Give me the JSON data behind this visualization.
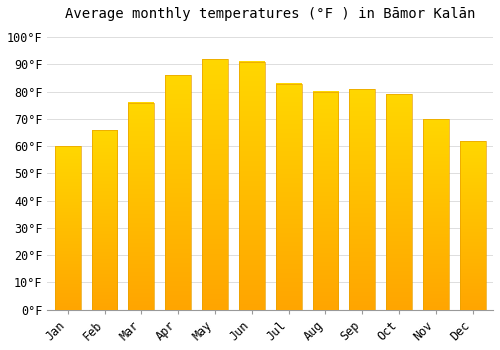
{
  "title": "Average monthly temperatures (°F ) in Bāmor Kalān",
  "months": [
    "Jan",
    "Feb",
    "Mar",
    "Apr",
    "May",
    "Jun",
    "Jul",
    "Aug",
    "Sep",
    "Oct",
    "Nov",
    "Dec"
  ],
  "values": [
    60,
    66,
    76,
    86,
    92,
    91,
    83,
    80,
    81,
    79,
    70,
    62
  ],
  "bar_color_top": "#FFD700",
  "bar_color_bottom": "#FFA500",
  "bar_edge_color": "#E8A000",
  "background_color": "#FFFFFF",
  "grid_color": "#DDDDDD",
  "ylim": [
    0,
    104
  ],
  "yticks": [
    0,
    10,
    20,
    30,
    40,
    50,
    60,
    70,
    80,
    90,
    100
  ],
  "title_fontsize": 10,
  "tick_fontsize": 8.5,
  "font_family": "monospace"
}
